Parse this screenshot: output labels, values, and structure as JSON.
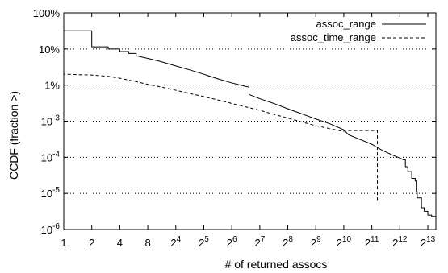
{
  "chart_data": {
    "type": "line",
    "xlabel": "# of returned assocs",
    "ylabel": "CCDF (fraction >)",
    "x_scale": "log2",
    "y_scale": "log10",
    "xlim": [
      1,
      10000
    ],
    "ylim": [
      1e-06,
      1
    ],
    "grid": "horizontal-dotted",
    "legend_position": "top-right",
    "x_ticks": [
      {
        "value": 1,
        "label": "1"
      },
      {
        "value": 2,
        "label": "2"
      },
      {
        "value": 4,
        "label": "4"
      },
      {
        "value": 8,
        "label": "8"
      },
      {
        "value": 16,
        "base": "2",
        "exp": "4"
      },
      {
        "value": 32,
        "base": "2",
        "exp": "5"
      },
      {
        "value": 64,
        "base": "2",
        "exp": "6"
      },
      {
        "value": 128,
        "base": "2",
        "exp": "7"
      },
      {
        "value": 256,
        "base": "2",
        "exp": "8"
      },
      {
        "value": 512,
        "base": "2",
        "exp": "9"
      },
      {
        "value": 1024,
        "base": "2",
        "exp": "10"
      },
      {
        "value": 2048,
        "base": "2",
        "exp": "11"
      },
      {
        "value": 4096,
        "base": "2",
        "exp": "12"
      },
      {
        "value": 8192,
        "base": "2",
        "exp": "13"
      }
    ],
    "y_ticks": [
      {
        "value": 1,
        "label": "100%"
      },
      {
        "value": 0.1,
        "label": "10%"
      },
      {
        "value": 0.01,
        "label": "1%"
      },
      {
        "value": 0.001,
        "base": "10",
        "exp": "-3"
      },
      {
        "value": 0.0001,
        "base": "10",
        "exp": "-4"
      },
      {
        "value": 1e-05,
        "base": "10",
        "exp": "-5"
      },
      {
        "value": 1e-06,
        "base": "10",
        "exp": "-6"
      }
    ],
    "series": [
      {
        "name": "assoc_range",
        "style": "solid",
        "color": "#000000",
        "points": [
          [
            1,
            1.0
          ],
          [
            1,
            0.32
          ],
          [
            2,
            0.32
          ],
          [
            2,
            0.115
          ],
          [
            3,
            0.115
          ],
          [
            3,
            0.1
          ],
          [
            4,
            0.1
          ],
          [
            4,
            0.085
          ],
          [
            5,
            0.085
          ],
          [
            5,
            0.075
          ],
          [
            6,
            0.075
          ],
          [
            6,
            0.065
          ],
          [
            8,
            0.055
          ],
          [
            11,
            0.045
          ],
          [
            16,
            0.034
          ],
          [
            23,
            0.026
          ],
          [
            32,
            0.02
          ],
          [
            45,
            0.015
          ],
          [
            64,
            0.0115
          ],
          [
            90,
            0.0092
          ],
          [
            98,
            0.0088
          ],
          [
            98,
            0.0055
          ],
          [
            128,
            0.0042
          ],
          [
            181,
            0.0031
          ],
          [
            256,
            0.0022
          ],
          [
            362,
            0.0016
          ],
          [
            512,
            0.00115
          ],
          [
            724,
            0.00085
          ],
          [
            1024,
            0.00058
          ],
          [
            1150,
            0.00042
          ],
          [
            1448,
            0.00033
          ],
          [
            2048,
            0.00023
          ],
          [
            2600,
            0.00016
          ],
          [
            3300,
            0.00012
          ],
          [
            4096,
            9.5e-05
          ],
          [
            4500,
            8.5e-05
          ],
          [
            4700,
            8.5e-05
          ],
          [
            4700,
            5.5e-05
          ],
          [
            5000,
            5.5e-05
          ],
          [
            5000,
            4e-05
          ],
          [
            5500,
            4e-05
          ],
          [
            5500,
            2.6e-05
          ],
          [
            6000,
            2.6e-05
          ],
          [
            6000,
            2.2e-05
          ],
          [
            6150,
            2.2e-05
          ],
          [
            6150,
            1.1e-05
          ],
          [
            6300,
            1.1e-05
          ],
          [
            6300,
            7.5e-06
          ],
          [
            7000,
            7.5e-06
          ],
          [
            7000,
            4e-06
          ],
          [
            7500,
            4e-06
          ],
          [
            7500,
            3.2e-06
          ],
          [
            8192,
            3.2e-06
          ],
          [
            8192,
            2.5e-06
          ],
          [
            9000,
            2.5e-06
          ],
          [
            9000,
            2.3e-06
          ],
          [
            10000,
            2.3e-06
          ]
        ]
      },
      {
        "name": "assoc_time_range",
        "style": "dashed",
        "color": "#000000",
        "points": [
          [
            1,
            0.4
          ],
          [
            1,
            0.02
          ],
          [
            2,
            0.019
          ],
          [
            3,
            0.0175
          ],
          [
            4,
            0.0155
          ],
          [
            6,
            0.0125
          ],
          [
            8,
            0.0105
          ],
          [
            12,
            0.0085
          ],
          [
            16,
            0.0072
          ],
          [
            23,
            0.0058
          ],
          [
            32,
            0.0048
          ],
          [
            45,
            0.0039
          ],
          [
            64,
            0.0031
          ],
          [
            90,
            0.0025
          ],
          [
            128,
            0.002
          ],
          [
            181,
            0.00155
          ],
          [
            256,
            0.00122
          ],
          [
            362,
            0.00095
          ],
          [
            512,
            0.00075
          ],
          [
            724,
            0.00062
          ],
          [
            1024,
            0.00052
          ],
          [
            1024,
            0.00055
          ],
          [
            2350,
            0.00055
          ],
          [
            2350,
            6.5e-06
          ]
        ]
      }
    ]
  }
}
